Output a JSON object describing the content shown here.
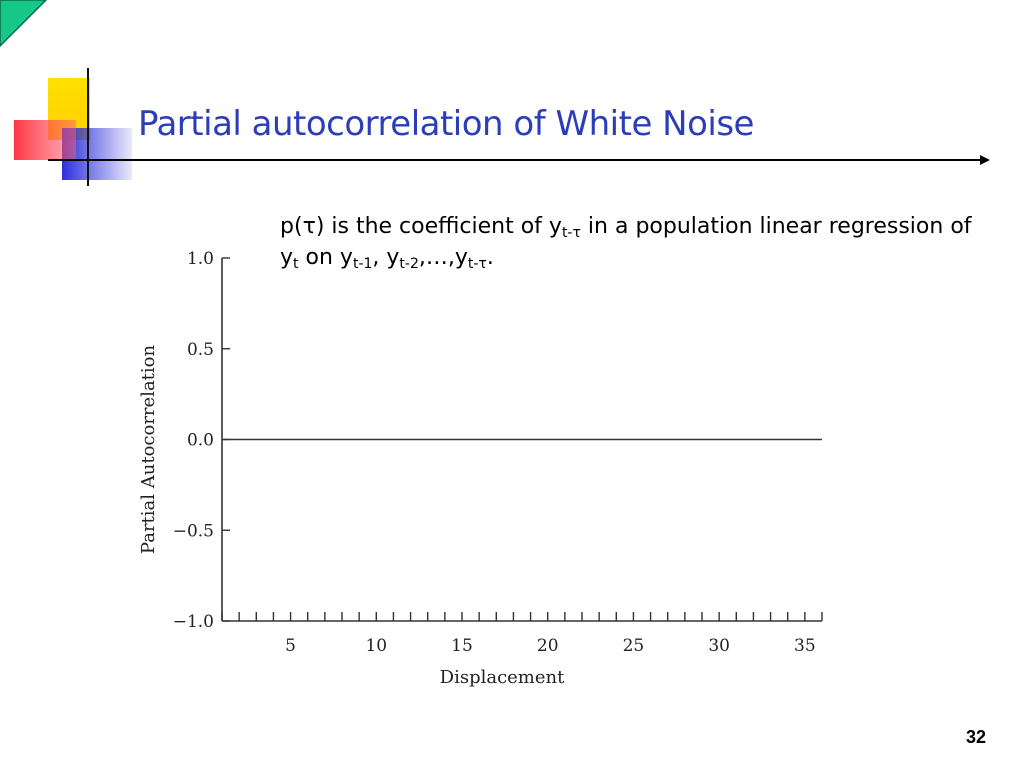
{
  "slide": {
    "title": "Partial autocorrelation of White Noise",
    "page_number": "32",
    "definition": {
      "p": "p(",
      "tau": "τ",
      "close": ") is the coefficient  of y",
      "sub1": "t-τ",
      "mid": " in a population linear regression of y",
      "sub2": "t",
      "on": " on y",
      "sub3": "t-1",
      "comma1": ", y",
      "sub4": "t-2",
      "ellipsis": ",…,y",
      "sub5": "t-τ",
      "end": "."
    }
  },
  "colors": {
    "title": "#2b3db8",
    "deco_yellow": "#ffd400",
    "deco_red": "#ff3b4a",
    "deco_blue": "#2c2fd8",
    "corner_green": "#16c78a"
  },
  "chart_data": {
    "type": "line",
    "ylabel": "Partial Autocorrelation",
    "xlabel": "Displacement",
    "ylim": [
      -1.0,
      1.0
    ],
    "xlim": [
      1,
      36
    ],
    "yticks": [
      1.0,
      0.5,
      0.0,
      -0.5,
      -1.0
    ],
    "ytick_labels": [
      "1.0",
      "0.5",
      "0.0",
      "−0.5",
      "−1.0"
    ],
    "xticks": [
      5,
      10,
      15,
      20,
      25,
      30,
      35
    ],
    "xtick_labels": [
      "5",
      "10",
      "15",
      "20",
      "25",
      "30",
      "35"
    ],
    "minor_xticks": [
      1,
      2,
      3,
      4,
      5,
      6,
      7,
      8,
      9,
      10,
      11,
      12,
      13,
      14,
      15,
      16,
      17,
      18,
      19,
      20,
      21,
      22,
      23,
      24,
      25,
      26,
      27,
      28,
      29,
      30,
      31,
      32,
      33,
      34,
      35,
      36
    ],
    "series": [
      {
        "x": [
          1,
          36
        ],
        "values": [
          0.0,
          0.0
        ]
      }
    ]
  }
}
